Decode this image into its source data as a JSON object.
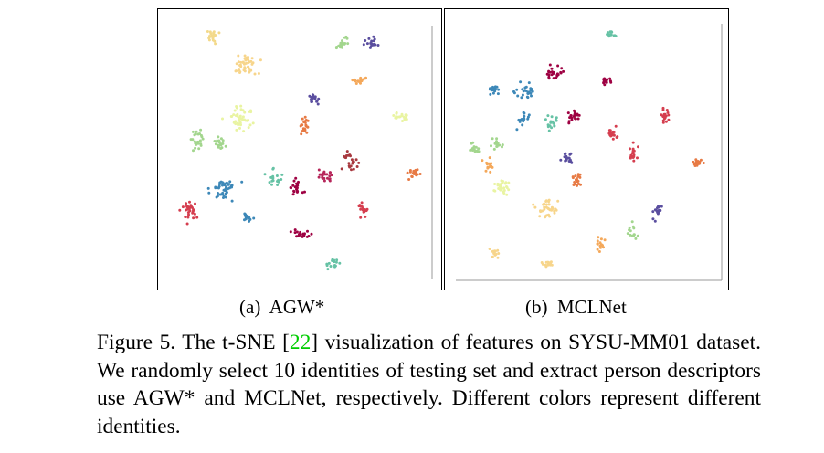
{
  "panels": [
    {
      "id": "a",
      "caption_label": "(a)",
      "caption_name": "AGW*",
      "clusters": [
        {
          "color": "#f3d98a",
          "cx": 59,
          "cy": 29,
          "sx": 6,
          "sy": 5,
          "n": 22
        },
        {
          "color": "#f7d58b",
          "cx": 97,
          "cy": 60,
          "sx": 11,
          "sy": 9,
          "n": 45
        },
        {
          "color": "#a3d68e",
          "cx": 201,
          "cy": 38,
          "sx": 5,
          "sy": 6,
          "n": 18
        },
        {
          "color": "#5a4e9f",
          "cx": 233,
          "cy": 36,
          "sx": 5,
          "sy": 5,
          "n": 20
        },
        {
          "color": "#f4a85a",
          "cx": 222,
          "cy": 78,
          "sx": 8,
          "sy": 3,
          "n": 16
        },
        {
          "color": "#e9f4a2",
          "cx": 92,
          "cy": 121,
          "sx": 11,
          "sy": 12,
          "n": 45
        },
        {
          "color": "#5a4e9f",
          "cx": 171,
          "cy": 98,
          "sx": 5,
          "sy": 5,
          "n": 18
        },
        {
          "color": "#e77a44",
          "cx": 161,
          "cy": 130,
          "sx": 5,
          "sy": 10,
          "n": 22
        },
        {
          "color": "#e9f4a2",
          "cx": 265,
          "cy": 117,
          "sx": 6,
          "sy": 5,
          "n": 18
        },
        {
          "color": "#a3d68e",
          "cx": 42,
          "cy": 145,
          "sx": 5,
          "sy": 11,
          "n": 24
        },
        {
          "color": "#a3d68e",
          "cx": 67,
          "cy": 146,
          "sx": 6,
          "sy": 7,
          "n": 20
        },
        {
          "color": "#a8393f",
          "cx": 211,
          "cy": 167,
          "sx": 6,
          "sy": 8,
          "n": 24
        },
        {
          "color": "#b6265a",
          "cx": 183,
          "cy": 182,
          "sx": 8,
          "sy": 5,
          "n": 22
        },
        {
          "color": "#e77a44",
          "cx": 279,
          "cy": 180,
          "sx": 6,
          "sy": 4,
          "n": 20
        },
        {
          "color": "#3d88b8",
          "cx": 73,
          "cy": 196,
          "sx": 12,
          "sy": 10,
          "n": 45
        },
        {
          "color": "#66c2a5",
          "cx": 126,
          "cy": 187,
          "sx": 6,
          "sy": 8,
          "n": 18
        },
        {
          "color": "#9e0142",
          "cx": 150,
          "cy": 196,
          "sx": 6,
          "sy": 7,
          "n": 22
        },
        {
          "color": "#d53e4f",
          "cx": 34,
          "cy": 219,
          "sx": 8,
          "sy": 9,
          "n": 30
        },
        {
          "color": "#3d88b8",
          "cx": 97,
          "cy": 228,
          "sx": 5,
          "sy": 5,
          "n": 18
        },
        {
          "color": "#d53e4f",
          "cx": 225,
          "cy": 220,
          "sx": 6,
          "sy": 6,
          "n": 20
        },
        {
          "color": "#9e0142",
          "cx": 156,
          "cy": 246,
          "sx": 8,
          "sy": 3,
          "n": 18
        },
        {
          "color": "#66c2a5",
          "cx": 191,
          "cy": 278,
          "sx": 5,
          "sy": 5,
          "n": 16
        }
      ],
      "frame_lines": [
        {
          "x1": 300,
          "y1": 18,
          "x2": 300,
          "y2": 296
        }
      ]
    },
    {
      "id": "b",
      "caption_label": "(b)",
      "caption_name": "MCLNet",
      "clusters": [
        {
          "color": "#66c2a5",
          "cx": 182,
          "cy": 28,
          "sx": 5,
          "sy": 4,
          "n": 16
        },
        {
          "color": "#9e0142",
          "cx": 121,
          "cy": 70,
          "sx": 8,
          "sy": 5,
          "n": 24
        },
        {
          "color": "#9e0142",
          "cx": 177,
          "cy": 79,
          "sx": 5,
          "sy": 3,
          "n": 16
        },
        {
          "color": "#3d88b8",
          "cx": 54,
          "cy": 88,
          "sx": 5,
          "sy": 6,
          "n": 18
        },
        {
          "color": "#3d88b8",
          "cx": 88,
          "cy": 89,
          "sx": 9,
          "sy": 6,
          "n": 26
        },
        {
          "color": "#3d88b8",
          "cx": 86,
          "cy": 118,
          "sx": 8,
          "sy": 8,
          "n": 18
        },
        {
          "color": "#66c2a5",
          "cx": 116,
          "cy": 123,
          "sx": 5,
          "sy": 6,
          "n": 18
        },
        {
          "color": "#9e0142",
          "cx": 140,
          "cy": 117,
          "sx": 7,
          "sy": 5,
          "n": 20
        },
        {
          "color": "#d53e4f",
          "cx": 240,
          "cy": 117,
          "sx": 4,
          "sy": 6,
          "n": 18
        },
        {
          "color": "#d53e4f",
          "cx": 184,
          "cy": 136,
          "sx": 5,
          "sy": 5,
          "n": 18
        },
        {
          "color": "#a3d68e",
          "cx": 32,
          "cy": 153,
          "sx": 5,
          "sy": 6,
          "n": 16
        },
        {
          "color": "#a3d68e",
          "cx": 57,
          "cy": 149,
          "sx": 5,
          "sy": 5,
          "n": 16
        },
        {
          "color": "#d53e4f",
          "cx": 207,
          "cy": 158,
          "sx": 4,
          "sy": 6,
          "n": 18
        },
        {
          "color": "#5a4e9f",
          "cx": 134,
          "cy": 163,
          "sx": 5,
          "sy": 5,
          "n": 18
        },
        {
          "color": "#e77a44",
          "cx": 277,
          "cy": 168,
          "sx": 5,
          "sy": 3,
          "n": 16
        },
        {
          "color": "#f4a85a",
          "cx": 48,
          "cy": 172,
          "sx": 5,
          "sy": 6,
          "n": 14
        },
        {
          "color": "#e77a44",
          "cx": 144,
          "cy": 188,
          "sx": 6,
          "sy": 7,
          "n": 18
        },
        {
          "color": "#e9f4a2",
          "cx": 64,
          "cy": 194,
          "sx": 9,
          "sy": 9,
          "n": 32
        },
        {
          "color": "#f7d58b",
          "cx": 112,
          "cy": 220,
          "sx": 10,
          "sy": 9,
          "n": 35
        },
        {
          "color": "#5a4e9f",
          "cx": 233,
          "cy": 222,
          "sx": 4,
          "sy": 6,
          "n": 18
        },
        {
          "color": "#a3d68e",
          "cx": 205,
          "cy": 245,
          "sx": 5,
          "sy": 6,
          "n": 14
        },
        {
          "color": "#f4a85a",
          "cx": 171,
          "cy": 258,
          "sx": 4,
          "sy": 8,
          "n": 16
        },
        {
          "color": "#f7d58b",
          "cx": 54,
          "cy": 267,
          "sx": 5,
          "sy": 5,
          "n": 16
        },
        {
          "color": "#f7d58b",
          "cx": 114,
          "cy": 279,
          "sx": 6,
          "sy": 3,
          "n": 16
        }
      ],
      "frame_lines": [
        {
          "x1": 12,
          "y1": 297,
          "x2": 303,
          "y2": 297
        },
        {
          "x1": 303,
          "y1": 16,
          "x2": 303,
          "y2": 297
        }
      ]
    }
  ],
  "caption": {
    "prefix": "Figure 5. The t-SNE [",
    "citation": "22",
    "suffix": "] visualization of features on SYSU-MM01 dataset. We randomly select 10 identities of testing set and extract person descriptors use AGW* and MCLNet, respectively. Different colors represent different identities."
  }
}
